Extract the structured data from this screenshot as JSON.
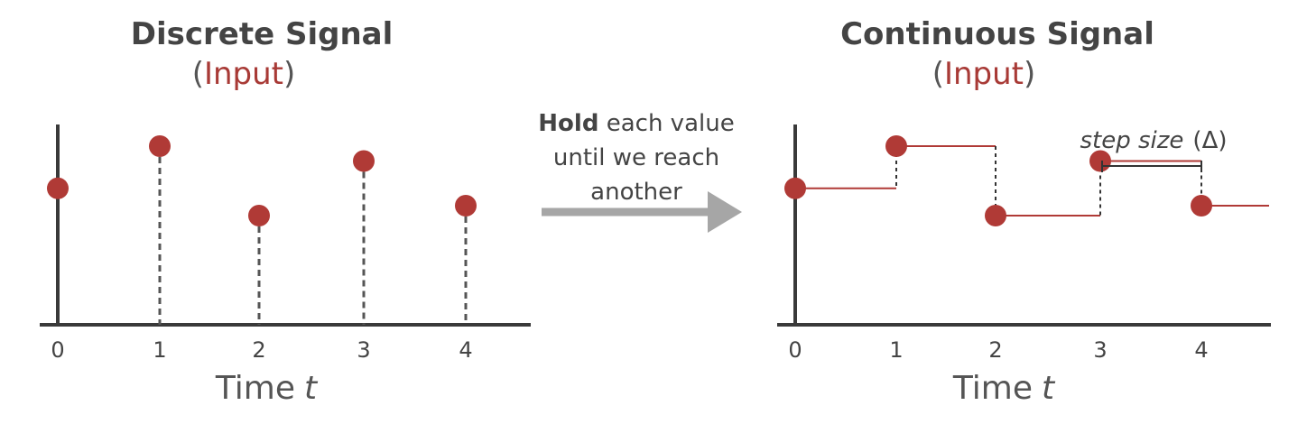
{
  "left_panel": {
    "title": "Discrete Signal",
    "subtitle_open": "(",
    "subtitle_word": "Input",
    "subtitle_close": ")",
    "x_ticks": [
      "0",
      "1",
      "2",
      "3",
      "4"
    ],
    "axis_label": "Time",
    "axis_var": "t"
  },
  "right_panel": {
    "title": "Continuous Signal",
    "subtitle_open": "(",
    "subtitle_word": "Input",
    "subtitle_close": ")",
    "x_ticks": [
      "0",
      "1",
      "2",
      "3",
      "4"
    ],
    "axis_label": "Time",
    "axis_var": "t",
    "step_label": "step size",
    "step_symbol": "(Δ)"
  },
  "arrow": {
    "bold": "Hold",
    "text_rest_line1": " each value",
    "line2": "until we reach",
    "line3": "another"
  },
  "chart_data": {
    "type": "line",
    "x": [
      0,
      1,
      2,
      3,
      4
    ],
    "values": [
      0.55,
      0.72,
      0.44,
      0.66,
      0.48
    ],
    "note_relative_values": true
  },
  "colors": {
    "signal": "#b03a36",
    "axis": "#3a3a3a",
    "stem": "#555555",
    "arrow": "#a6a6a6"
  }
}
